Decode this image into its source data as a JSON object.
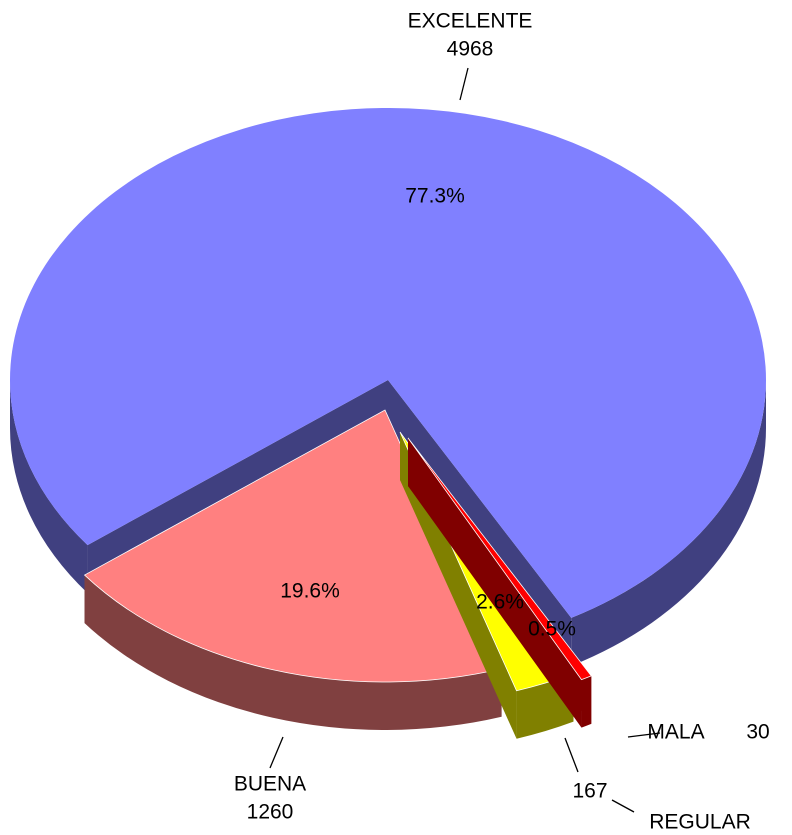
{
  "chart_data": {
    "type": "pie",
    "categories": [
      "EXCELENTE",
      "BUENA",
      "REGULAR",
      "MALA"
    ],
    "values": [
      4968,
      1260,
      167,
      30
    ],
    "percentages": [
      77.3,
      19.6,
      2.6,
      0.5
    ],
    "percent_labels": [
      "77.3%",
      "19.6%",
      "2.6%",
      "0.5%"
    ],
    "colors": [
      "#8080ff",
      "#ff8080",
      "#ffff00",
      "#ff0000"
    ],
    "three_d": true
  }
}
